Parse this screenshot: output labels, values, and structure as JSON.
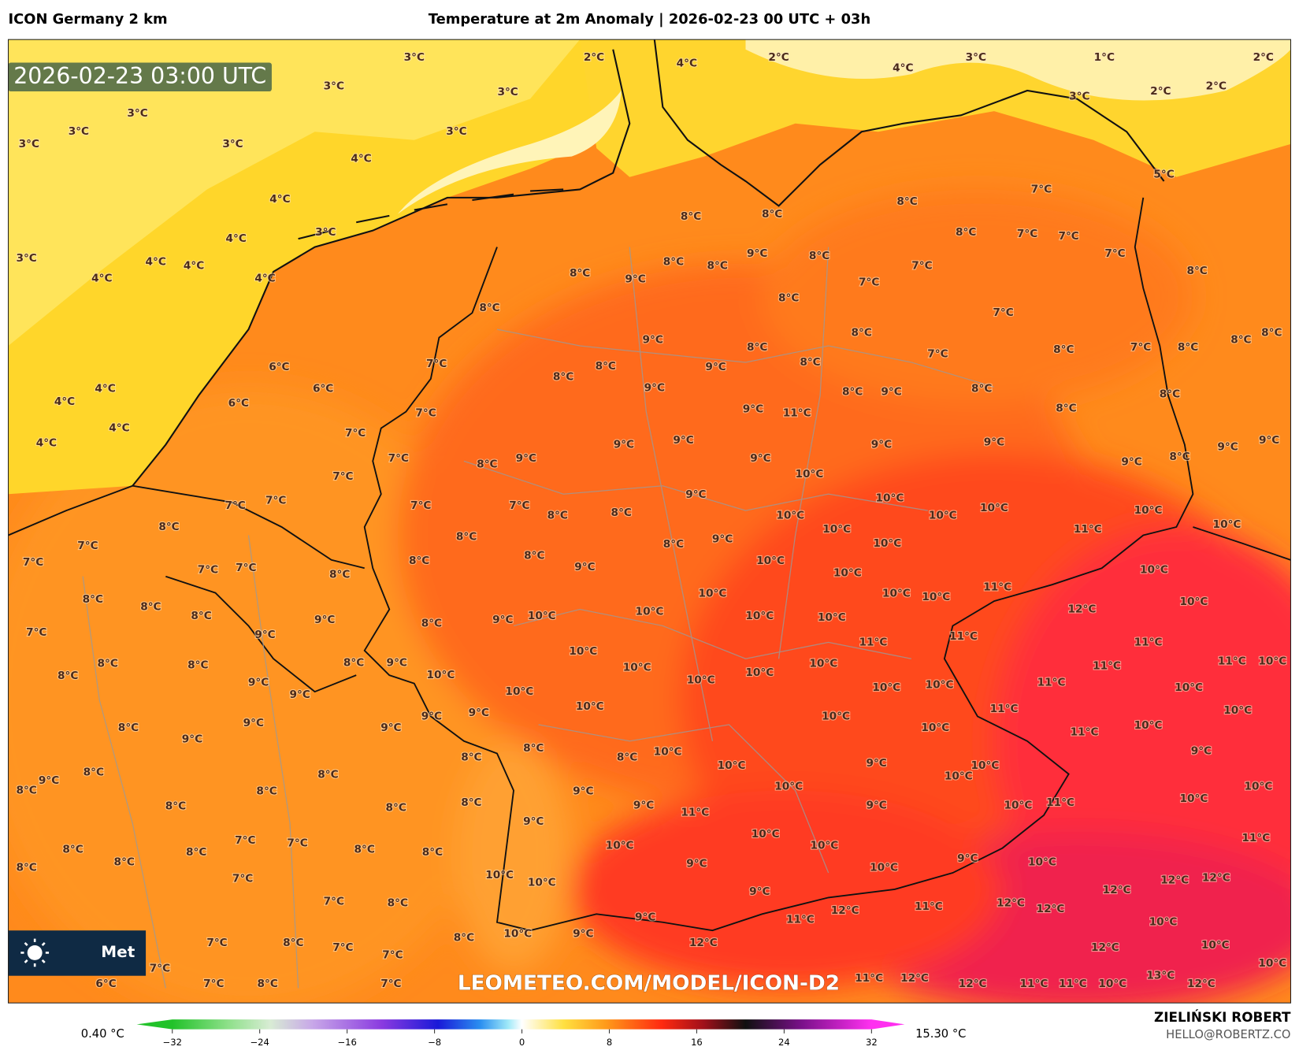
{
  "header": {
    "model": "ICON Germany 2 km",
    "title": "Temperature at 2m Anomaly | 2026-02-23 00 UTC + 03h"
  },
  "map": {
    "timestamp": "2026-02-23 03:00 UTC",
    "watermark": "LEOMETEO.COM/MODEL/ICON-D2",
    "logo": "Met",
    "labels": [
      "3°C",
      "2°C",
      "4°C",
      "2°C",
      "4°C",
      "3°C",
      "1°C",
      "2°C",
      "3°C",
      "3°C",
      "3°C",
      "2°C",
      "2°C",
      "3°C",
      "3°C",
      "3°C",
      "3°C",
      "3°C",
      "4°C",
      "5°C",
      "4°C",
      "8°C",
      "7°C",
      "8°C",
      "8°C",
      "3°C",
      "4°C",
      "8°C",
      "7°C",
      "7°C",
      "3°C",
      "4°C",
      "4°C",
      "4°C",
      "4°C",
      "8°C",
      "8°C",
      "9°C",
      "8°C",
      "7°C",
      "7°C",
      "8°C",
      "8°C",
      "9°C",
      "7°C",
      "8°C",
      "8°C",
      "7°C",
      "9°C",
      "8°C",
      "8°C",
      "7°C",
      "8°C",
      "7°C",
      "8°C",
      "8°C",
      "8°C",
      "6°C",
      "7°C",
      "8°C",
      "9°C",
      "8°C",
      "4°C",
      "6°C",
      "8°C",
      "9°C",
      "8°C",
      "9°C",
      "8°C",
      "8°C",
      "4°C",
      "6°C",
      "7°C",
      "9°C",
      "11°C",
      "8°C",
      "4°C",
      "7°C",
      "9°C",
      "9°C",
      "9°C",
      "9°C",
      "9°C",
      "4°C",
      "7°C",
      "9°C",
      "9°C",
      "9°C",
      "8°C",
      "8°C",
      "9°C",
      "7°C",
      "10°C",
      "7°C",
      "7°C",
      "7°C",
      "7°C",
      "9°C",
      "10°C",
      "10°C",
      "10°C",
      "8°C",
      "8°C",
      "8°C",
      "10°C",
      "10°C",
      "10°C",
      "11°C",
      "10°C",
      "7°C",
      "8°C",
      "9°C",
      "10°C",
      "7°C",
      "8°C",
      "8°C",
      "8°C",
      "10°C",
      "7°C",
      "7°C",
      "8°C",
      "9°C",
      "10°C",
      "10°C",
      "8°C",
      "8°C",
      "10°C",
      "10°C",
      "10°C",
      "11°C",
      "10°C",
      "7°C",
      "8°C",
      "9°C",
      "9°C",
      "10°C",
      "10°C",
      "10°C",
      "10°C",
      "12°C",
      "9°C",
      "8°C",
      "11°C",
      "11°C",
      "11°C",
      "8°C",
      "8°C",
      "8°C",
      "9°C",
      "10°C",
      "10°C",
      "10°C",
      "11°C",
      "11°C",
      "10°C",
      "8°C",
      "9°C",
      "10°C",
      "10°C",
      "10°C",
      "11°C",
      "9°C",
      "10°C",
      "10°C",
      "10°C",
      "10°C",
      "10°C",
      "11°C",
      "10°C",
      "9°C",
      "9°C",
      "9°C",
      "9°C",
      "10°C",
      "10°C",
      "11°C",
      "10°C",
      "8°C",
      "9°C",
      "8°C",
      "8°C",
      "10°C",
      "10°C",
      "9°C",
      "10°C",
      "9°C",
      "8°C",
      "8°C",
      "8°C",
      "9°C",
      "8°C",
      "9°C",
      "10°C",
      "10°C",
      "10°C",
      "8°C",
      "8°C",
      "8°C",
      "8°C",
      "9°C",
      "11°C",
      "9°C",
      "10°C",
      "11°C",
      "10°C",
      "7°C",
      "7°C",
      "9°C",
      "10°C",
      "11°C",
      "8°C",
      "8°C",
      "8°C",
      "8°C",
      "10°C",
      "10°C",
      "8°C",
      "9°C",
      "10°C",
      "9°C",
      "8°C",
      "10°C",
      "10°C",
      "12°C",
      "12°C",
      "10°C",
      "7°C",
      "7°C",
      "8°C",
      "9°C",
      "12°C",
      "12°C",
      "12°C",
      "11°C",
      "12°C",
      "11°C",
      "9°C",
      "10°C",
      "8°C",
      "10°C",
      "9°C",
      "12°C",
      "7°C",
      "8°C",
      "7°C",
      "12°C",
      "10°C",
      "7°C",
      "10°C",
      "7°C",
      "6°C",
      "7°C",
      "8°C",
      "7°C",
      "11°C",
      "12°C",
      "12°C",
      "11°C",
      "11°C",
      "10°C",
      "13°C",
      "12°C"
    ]
  },
  "colorbar": {
    "min_label": "0.40 °C",
    "max_label": "15.30 °C",
    "ticks": [
      {
        "value": -32,
        "label": "−32"
      },
      {
        "value": -24,
        "label": "−24"
      },
      {
        "value": -16,
        "label": "−16"
      },
      {
        "value": -8,
        "label": "−8"
      },
      0,
      8,
      16,
      24,
      32
    ]
  },
  "footer": {
    "author": "ZIELIŃSKI ROBERT",
    "email": "HELLO@ROBERTZ.CO"
  }
}
